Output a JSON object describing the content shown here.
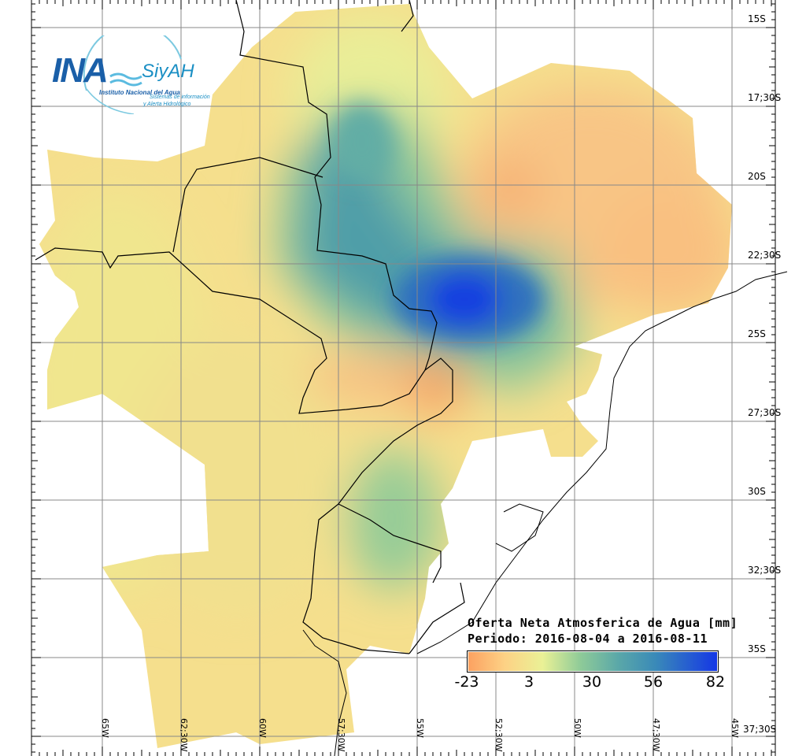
{
  "logo": {
    "name": "INA",
    "product": "SiyAH",
    "institution": "Instituto Nacional del Agua",
    "subtitle_1": "Sistemas de información",
    "subtitle_2": "y Alerta Hidrológico"
  },
  "legend": {
    "title": "Oferta Neta Atmosferica de Agua [mm]",
    "period": "Periodo: 2016-08-04 a 2016-08-11",
    "ticks": [
      "-23",
      "3",
      "30",
      "56",
      "82"
    ],
    "colors": [
      "#fca060",
      "#fdd285",
      "#eaf196",
      "#8fcb98",
      "#5ba8a8",
      "#3a8ab8",
      "#1436e6"
    ]
  },
  "latitude_labels": [
    "15S",
    "17;30S",
    "20S",
    "22;30S",
    "25S",
    "27;30S",
    "30S",
    "32;30S",
    "35S",
    "37;30S"
  ],
  "longitude_labels": [
    "65W",
    "62;30W",
    "60W",
    "57;30W",
    "55W",
    "52;30W",
    "50W",
    "47;30W",
    "45W"
  ]
}
